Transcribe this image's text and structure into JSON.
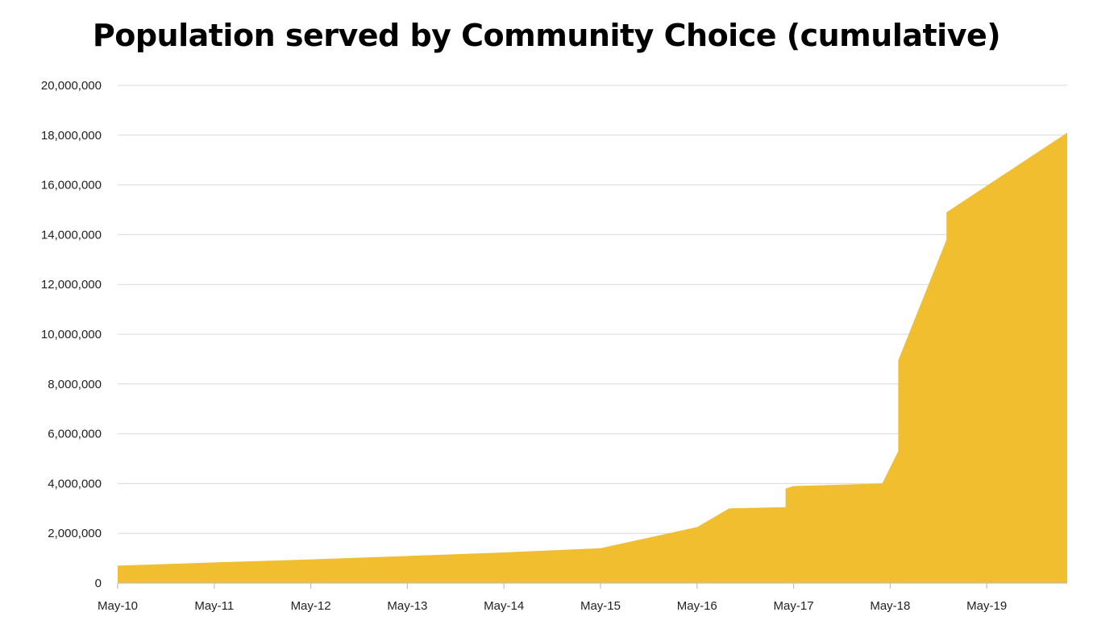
{
  "chart_data": {
    "type": "area",
    "title": "Population served by Community Choice (cumulative)",
    "xlabel": "",
    "ylabel": "",
    "x_tick_labels": [
      "May-10",
      "May-11",
      "May-12",
      "May-13",
      "May-14",
      "May-15",
      "May-16",
      "May-17",
      "May-18",
      "May-19"
    ],
    "y_tick_labels": [
      "0",
      "2,000,000",
      "4,000,000",
      "6,000,000",
      "8,000,000",
      "10,000,000",
      "12,000,000",
      "14,000,000",
      "16,000,000",
      "18,000,000",
      "20,000,000"
    ],
    "y_ticks": [
      0,
      2000000,
      4000000,
      6000000,
      8000000,
      10000000,
      12000000,
      14000000,
      16000000,
      18000000,
      20000000
    ],
    "ylim": [
      0,
      20000000
    ],
    "xlim": [
      "2010-05",
      "2020-03"
    ],
    "grid": true,
    "series": [
      {
        "color": "#F0BE2E",
        "points": [
          {
            "x": "2010-05",
            "y": 700000
          },
          {
            "x": "2011-05",
            "y": 830000
          },
          {
            "x": "2012-05",
            "y": 950000
          },
          {
            "x": "2013-05",
            "y": 1090000
          },
          {
            "x": "2014-05",
            "y": 1230000
          },
          {
            "x": "2015-05",
            "y": 1400000
          },
          {
            "x": "2016-05",
            "y": 2250000
          },
          {
            "x": "2016-09",
            "y": 3000000
          },
          {
            "x": "2017-04",
            "y": 3050000
          },
          {
            "x": "2017-04",
            "y": 3800000
          },
          {
            "x": "2017-05",
            "y": 3900000
          },
          {
            "x": "2018-04",
            "y": 4000000
          },
          {
            "x": "2018-06",
            "y": 5300000
          },
          {
            "x": "2018-06",
            "y": 8950000
          },
          {
            "x": "2018-12",
            "y": 13800000
          },
          {
            "x": "2018-12",
            "y": 14900000
          },
          {
            "x": "2020-03",
            "y": 18100000
          }
        ]
      }
    ]
  }
}
